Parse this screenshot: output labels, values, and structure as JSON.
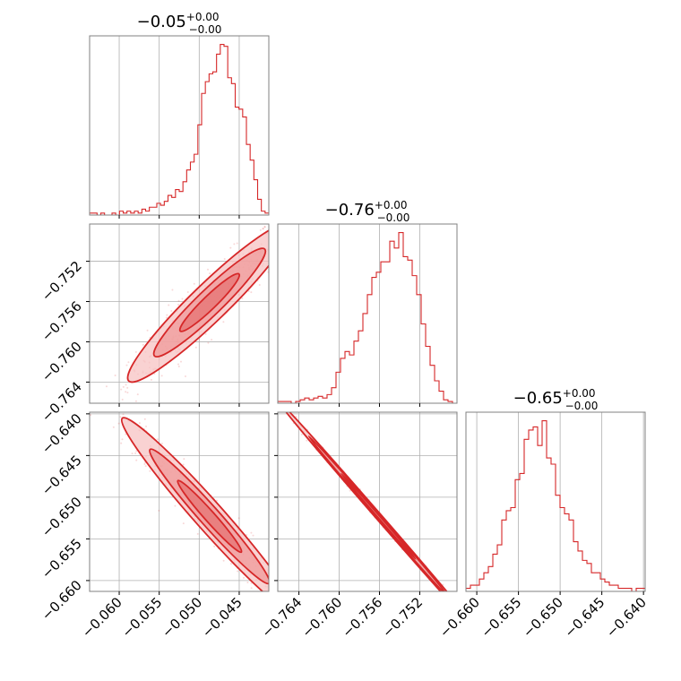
{
  "colors": {
    "line": "#d62728",
    "fill_light": "#f7c3c3",
    "fill_mid": "#ef9a9a",
    "fill_dark": "#e57373",
    "grid": "#b0b0b0",
    "frame": "#808080"
  },
  "parameters": [
    {
      "title_main": "−0.05",
      "title_sup": "+0.00",
      "title_sub": "−0.00"
    },
    {
      "title_main": "−0.76",
      "title_sup": "+0.00",
      "title_sub": "−0.00"
    },
    {
      "title_main": "−0.65",
      "title_sup": "+0.00",
      "title_sub": "−0.00"
    }
  ],
  "chart_data": {
    "type": "corner",
    "grid": true,
    "axes": [
      {
        "range": [
          -0.0637,
          -0.0413
        ],
        "ticks": [
          -0.06,
          -0.055,
          -0.05,
          -0.045
        ],
        "tick_labels": [
          "−0.060",
          "−0.055",
          "−0.050",
          "−0.045"
        ]
      },
      {
        "range": [
          -0.7661,
          -0.7483
        ],
        "ticks": [
          -0.764,
          -0.76,
          -0.756,
          -0.752
        ],
        "tick_labels": [
          "−0.764",
          "−0.760",
          "−0.756",
          "−0.752"
        ]
      },
      {
        "range": [
          -0.6613,
          -0.6398
        ],
        "ticks": [
          -0.66,
          -0.655,
          -0.65,
          -0.645,
          -0.64
        ],
        "tick_labels": [
          "−0.660",
          "−0.655",
          "−0.650",
          "−0.645",
          "−0.640"
        ]
      }
    ],
    "histograms": [
      {
        "param": 0,
        "bin_edges": [
          -0.0637,
          -0.0413
        ],
        "counts": [
          1,
          1,
          0,
          1,
          0,
          0,
          1,
          0,
          2,
          1,
          2,
          1,
          2,
          1,
          3,
          2,
          4,
          4,
          6,
          5,
          7,
          10,
          9,
          13,
          12,
          17,
          23,
          27,
          31,
          46,
          62,
          68,
          72,
          73,
          82,
          87,
          86,
          70,
          67,
          55,
          54,
          50,
          36,
          28,
          18,
          8,
          2,
          1
        ]
      },
      {
        "param": 1,
        "bin_edges": [
          -0.7661,
          -0.7483
        ],
        "counts": [
          1,
          1,
          1,
          0,
          1,
          2,
          3,
          2,
          3,
          4,
          3,
          5,
          9,
          18,
          26,
          30,
          28,
          36,
          42,
          52,
          63,
          73,
          76,
          82,
          82,
          94,
          90,
          99,
          85,
          83,
          74,
          63,
          46,
          33,
          22,
          13,
          7,
          2,
          1,
          0
        ]
      },
      {
        "param": 2,
        "bin_edges": [
          -0.6613,
          -0.6398
        ],
        "counts": [
          1,
          2,
          2,
          4,
          6,
          8,
          12,
          15,
          23,
          26,
          27,
          36,
          38,
          49,
          52,
          53,
          47,
          55,
          43,
          41,
          31,
          27,
          25,
          23,
          16,
          13,
          10,
          9,
          6,
          6,
          4,
          3,
          2,
          2,
          1,
          1,
          1,
          0,
          1,
          1
        ]
      }
    ],
    "pairs": [
      {
        "x_param": 0,
        "y_param": 1,
        "center": [
          -0.0487,
          -0.7561
        ],
        "slope": 0.77,
        "spread_along": 0.0058,
        "spread_across": 0.0009
      },
      {
        "x_param": 0,
        "y_param": 2,
        "center": [
          -0.0487,
          -0.6523
        ],
        "slope": -1.08,
        "spread_along": 0.0073,
        "spread_across": 0.0008
      },
      {
        "x_param": 1,
        "y_param": 2,
        "center": [
          -0.7561,
          -0.6523
        ],
        "slope": -1.39,
        "spread_along": 0.0079,
        "spread_across": 0.00012
      }
    ]
  }
}
